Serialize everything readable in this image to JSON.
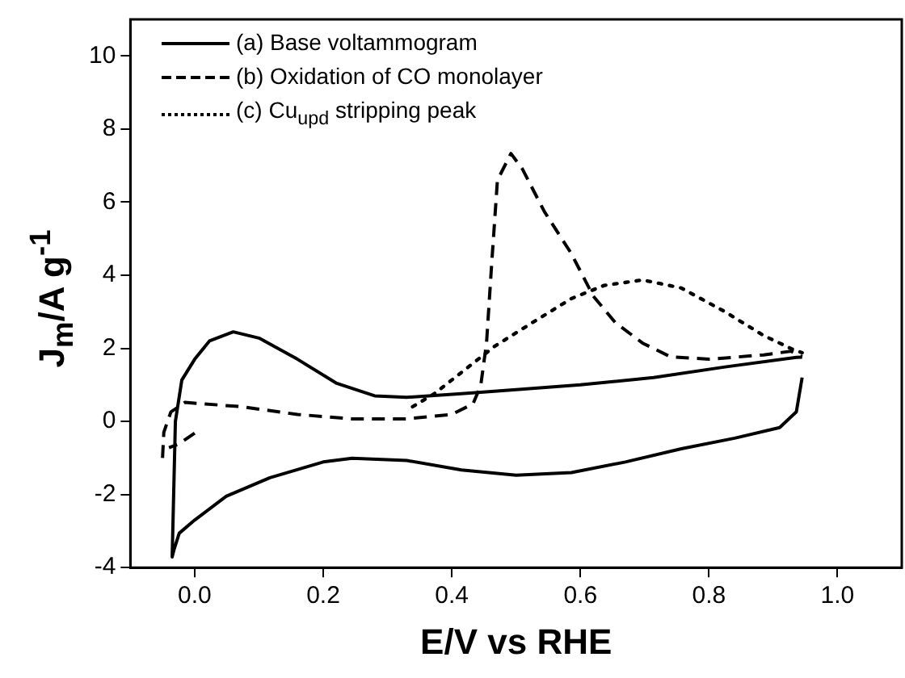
{
  "chart_data": {
    "type": "line",
    "xlabel": "E/V vs RHE",
    "ylabel": "J$_{m}$/A g$^{-1}$",
    "xlim": [
      -0.1,
      1.1
    ],
    "ylim": [
      -4,
      11
    ],
    "xticks": [
      {
        "value": 0,
        "label": "0.0"
      },
      0.2,
      0.4,
      0.6,
      0.8,
      {
        "value": 1,
        "label": "1.0"
      }
    ],
    "yticks": [
      -4,
      -2,
      0,
      2,
      4,
      6,
      8,
      10
    ],
    "grid": false,
    "legend": "top left",
    "marker": "none",
    "series": [
      {
        "name": "(a) Base voltammogram",
        "color": "#000000",
        "line_style": "solid",
        "x": [
          0.945,
          0.936,
          0.91,
          0.84,
          0.757,
          0.67,
          0.586,
          0.5,
          0.415,
          0.33,
          0.245,
          0.2,
          0.117,
          0.049,
          0,
          -0.024,
          -0.032,
          -0.035,
          -0.03,
          -0.02,
          0,
          0.023,
          0.06,
          0.1,
          0.16,
          0.22,
          0.28,
          0.33,
          0.415,
          0.5,
          0.6,
          0.714,
          0.825,
          0.936,
          0.945
        ],
        "values": [
          1.2,
          0.26,
          -0.17,
          -0.46,
          -0.75,
          -1.11,
          -1.4,
          -1.47,
          -1.33,
          -1.07,
          -1.01,
          -1.11,
          -1.54,
          -2.05,
          -2.7,
          -3.06,
          -3.5,
          -3.71,
          0,
          1.13,
          1.7,
          2.2,
          2.45,
          2.28,
          1.7,
          1.05,
          0.7,
          0.66,
          0.76,
          0.87,
          1.0,
          1.2,
          1.49,
          1.75,
          1.76
        ]
      },
      {
        "name": "(b) Oxidation of CO monolayer",
        "color": "#000000",
        "line_style": "dashed",
        "x": [
          0,
          -0.025,
          -0.04,
          null,
          -0.05,
          -0.048,
          -0.037,
          -0.015,
          0.074,
          0.16,
          0.245,
          0.33,
          0.4,
          0.433,
          0.445,
          0.454,
          0.462,
          0.471,
          0.492,
          0.51,
          0.544,
          0.586,
          0.62,
          0.654,
          0.697,
          0.74,
          0.8,
          0.885,
          0.928,
          0.945
        ],
        "values": [
          -0.32,
          -0.62,
          -0.72,
          null,
          -1.0,
          -0.3,
          0.26,
          0.52,
          0.4,
          0.19,
          0.07,
          0.07,
          0.19,
          0.48,
          0.98,
          2.14,
          4.3,
          6.6,
          7.33,
          6.9,
          5.74,
          4.59,
          3.43,
          2.71,
          2.14,
          1.77,
          1.7,
          1.82,
          1.92,
          1.77
        ]
      },
      {
        "name": "(c) Cu$_{upd}$ stripping peak",
        "color": "#000000",
        "line_style": "dotted",
        "x": [
          0.339,
          0.373,
          0.415,
          0.467,
          0.526,
          0.586,
          0.637,
          0.697,
          0.757,
          0.825,
          0.885,
          0.928,
          0.945
        ],
        "values": [
          0.4,
          0.76,
          1.34,
          2.06,
          2.71,
          3.36,
          3.72,
          3.87,
          3.65,
          3.0,
          2.35,
          1.99,
          1.88
        ]
      }
    ]
  }
}
